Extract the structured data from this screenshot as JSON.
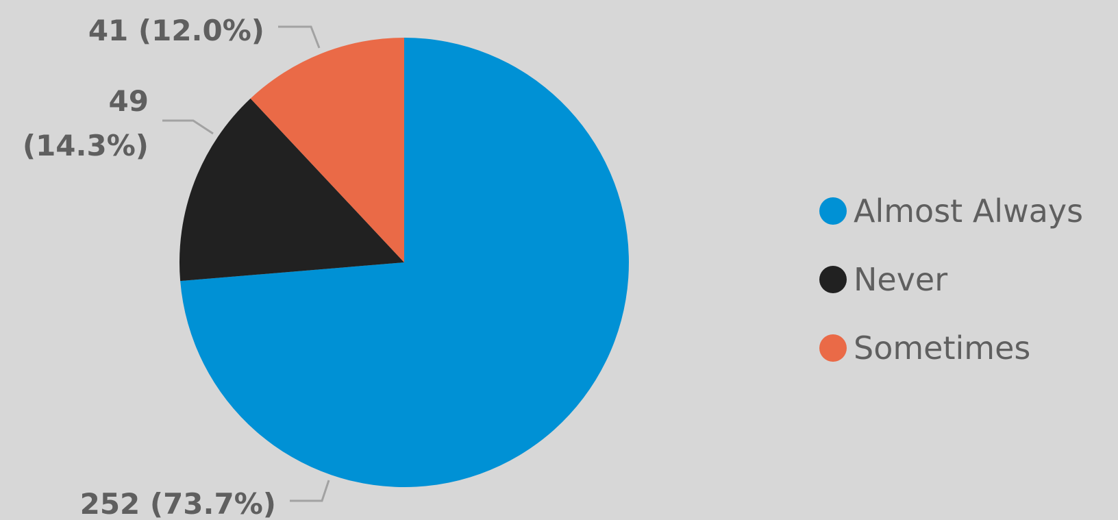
{
  "chart_data": {
    "type": "pie",
    "start_angle": "12 o'clock",
    "direction": "clockwise",
    "slices": [
      {
        "label": "Almost Always",
        "value": 252,
        "percent": "73.7%",
        "color": "#0091d5",
        "data_label": "252 (73.7%)"
      },
      {
        "label": "Never",
        "value": 49,
        "percent": "14.3%",
        "color": "#212121",
        "data_label_line1": "49",
        "data_label_line2": "(14.3%)"
      },
      {
        "label": "Sometimes",
        "value": 41,
        "percent": "12.0%",
        "color": "#ea6a47",
        "data_label": "41 (12.0%)"
      }
    ],
    "legend": {
      "placement": "right",
      "entries": [
        "Almost Always",
        "Never",
        "Sometimes"
      ]
    }
  },
  "colors": {
    "background": "#d7d7d7",
    "label_text": "#5f5f5f",
    "leader_line": "#a2a2a2"
  }
}
